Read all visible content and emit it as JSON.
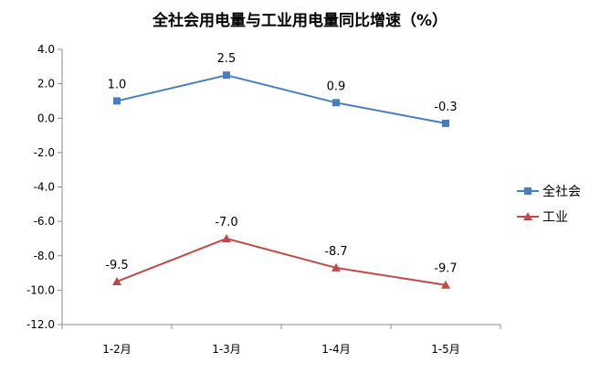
{
  "chart_data": {
    "type": "line",
    "title": "全社会用电量与工业用电量同比增速（%）",
    "categories": [
      "1-2月",
      "1-3月",
      "1-4月",
      "1-5月"
    ],
    "series": [
      {
        "name": "全社会",
        "values": [
          1.0,
          2.5,
          0.9,
          -0.3
        ],
        "labels": [
          "1.0",
          "2.5",
          "0.9",
          "-0.3"
        ],
        "color": "#4a7ebb",
        "marker": "square"
      },
      {
        "name": "工业",
        "values": [
          -9.5,
          -7.0,
          -8.7,
          -9.7
        ],
        "labels": [
          "-9.5",
          "-7.0",
          "-8.7",
          "-9.7"
        ],
        "color": "#be4b48",
        "marker": "triangle"
      }
    ],
    "ylim": [
      -12.0,
      4.0
    ],
    "yticks": [
      4.0,
      2.0,
      0.0,
      -2.0,
      -4.0,
      -6.0,
      -8.0,
      -10.0,
      -12.0
    ],
    "ytick_labels": [
      "4.0",
      "2.0",
      "0.0",
      "-2.0",
      "-4.0",
      "-6.0",
      "-8.0",
      "-10.0",
      "-12.0"
    ],
    "grid": false,
    "legend_position": "right"
  }
}
